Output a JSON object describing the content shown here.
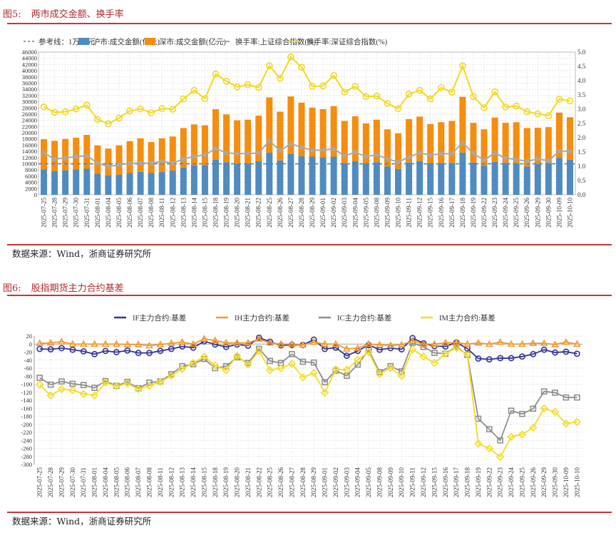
{
  "figure5": {
    "number": "图5:",
    "title": "两市成交金额、换手率",
    "source": "数据来源：Wind，浙商证券研究所"
  },
  "figure6": {
    "number": "图6:",
    "title": "股指期货主力合约基差",
    "source": "数据来源：Wind，浙商证券研究所"
  },
  "chart_data": [
    {
      "type": "bar",
      "stacked": true,
      "categories": [
        "2025-07-25",
        "2025-07-28",
        "2025-07-29",
        "2025-07-30",
        "2025-07-31",
        "2025-08-01",
        "2025-08-04",
        "2025-08-05",
        "2025-08-06",
        "2025-08-07",
        "2025-08-08",
        "2025-08-11",
        "2025-08-12",
        "2025-08-13",
        "2025-08-14",
        "2025-08-15",
        "2025-08-18",
        "2025-08-19",
        "2025-08-20",
        "2025-08-21",
        "2025-08-22",
        "2025-08-25",
        "2025-08-26",
        "2025-08-27",
        "2025-08-28",
        "2025-08-29",
        "2025-09-01",
        "2025-09-02",
        "2025-09-03",
        "2025-09-04",
        "2025-09-05",
        "2025-09-08",
        "2025-09-09",
        "2025-09-10",
        "2025-09-11",
        "2025-09-12",
        "2025-09-15",
        "2025-09-16",
        "2025-09-17",
        "2025-09-18",
        "2025-09-19",
        "2025-09-22",
        "2025-09-23",
        "2025-09-24",
        "2025-09-25",
        "2025-09-26",
        "2025-09-29",
        "2025-09-30",
        "2025-10-09",
        "2025-10-10"
      ],
      "reference_line": {
        "name": "参考线：1万亿元",
        "value": 10000,
        "color": "#4a86c0",
        "style": "dashed"
      },
      "series": [
        {
          "name": "沪市:成交金额(亿元)",
          "kind": "bar",
          "axis": "left",
          "color": "#4f8bc1",
          "values": [
            8200,
            7600,
            7900,
            8200,
            8400,
            6800,
            6300,
            6500,
            7000,
            7400,
            7100,
            7400,
            7800,
            8800,
            9500,
            9600,
            11300,
            10500,
            10000,
            10000,
            10800,
            13600,
            11100,
            13200,
            12500,
            12300,
            12100,
            12300,
            10200,
            10800,
            10100,
            10500,
            9100,
            8300,
            10400,
            10900,
            10200,
            10200,
            10300,
            13600,
            10400,
            9400,
            10600,
            10300,
            10100,
            9100,
            9900,
            10200,
            11900,
            11300
          ]
        },
        {
          "name": "深市:成交金额(亿元)",
          "kind": "bar",
          "axis": "left",
          "color": "#f58d0e",
          "values": [
            9700,
            9800,
            10100,
            10200,
            10900,
            9100,
            8600,
            9400,
            10300,
            10800,
            9900,
            10800,
            11000,
            12700,
            13200,
            12800,
            16300,
            15400,
            14000,
            14200,
            14700,
            17800,
            15700,
            18500,
            17200,
            15800,
            15500,
            16300,
            13600,
            14500,
            12900,
            13700,
            12000,
            11500,
            14000,
            14300,
            12600,
            13200,
            13500,
            18000,
            12800,
            11700,
            14300,
            12900,
            13300,
            12400,
            11700,
            11600,
            14600,
            13700
          ]
        },
        {
          "name": "换手率:上证综合指数(%)",
          "kind": "line",
          "axis": "right",
          "color": "#a9a9a9",
          "values": [
            1.47,
            1.25,
            1.29,
            1.34,
            1.37,
            1.11,
            0.99,
            1.05,
            1.1,
            1.11,
            1.11,
            1.17,
            1.11,
            1.26,
            1.34,
            1.4,
            1.62,
            1.47,
            1.44,
            1.45,
            1.46,
            1.89,
            1.54,
            1.79,
            1.66,
            1.56,
            1.57,
            1.61,
            1.36,
            1.49,
            1.34,
            1.4,
            1.26,
            1.15,
            1.32,
            1.47,
            1.39,
            1.44,
            1.44,
            1.82,
            1.45,
            1.21,
            1.47,
            1.28,
            1.24,
            1.17,
            1.26,
            1.19,
            1.53,
            1.53
          ]
        },
        {
          "name": "换手率:深证综合指数(%)",
          "kind": "line",
          "axis": "right",
          "color": "#f2d81e",
          "values": [
            3.08,
            2.89,
            2.91,
            3.01,
            3.14,
            2.64,
            2.49,
            2.69,
            2.94,
            3.01,
            2.88,
            3.02,
            3.0,
            3.36,
            3.66,
            3.37,
            4.23,
            3.98,
            3.78,
            3.86,
            3.76,
            4.52,
            4.08,
            4.83,
            4.47,
            3.8,
            3.82,
            4.18,
            3.6,
            3.8,
            3.44,
            3.46,
            3.2,
            3.02,
            3.53,
            3.66,
            3.36,
            3.75,
            3.6,
            4.52,
            3.44,
            3.05,
            3.61,
            3.08,
            3.11,
            2.91,
            2.84,
            2.77,
            3.35,
            3.29
          ]
        }
      ],
      "y_left": {
        "min": 0,
        "max": 46000,
        "step": 2000
      },
      "y_right": {
        "min": 0,
        "max": 5.0,
        "step": 0.5
      },
      "grid": true,
      "legend": "top"
    },
    {
      "type": "line",
      "categories": [
        "2025-07-25",
        "2025-07-28",
        "2025-07-29",
        "2025-07-30",
        "2025-07-31",
        "2025-08-01",
        "2025-08-04",
        "2025-08-05",
        "2025-08-06",
        "2025-08-07",
        "2025-08-08",
        "2025-08-11",
        "2025-08-12",
        "2025-08-13",
        "2025-08-14",
        "2025-08-15",
        "2025-08-18",
        "2025-08-19",
        "2025-08-20",
        "2025-08-21",
        "2025-08-22",
        "2025-08-25",
        "2025-08-26",
        "2025-08-27",
        "2025-08-28",
        "2025-08-29",
        "2025-09-01",
        "2025-09-02",
        "2025-09-03",
        "2025-09-04",
        "2025-09-05",
        "2025-09-08",
        "2025-09-09",
        "2025-09-10",
        "2025-09-11",
        "2025-09-12",
        "2025-09-15",
        "2025-09-16",
        "2025-09-17",
        "2025-09-18",
        "2025-09-19",
        "2025-09-22",
        "2025-09-23",
        "2025-09-24",
        "2025-09-25",
        "2025-09-26",
        "2025-09-29",
        "2025-09-30",
        "2025-10-09",
        "2025-10-10"
      ],
      "series": [
        {
          "name": "IF主力合约:基差",
          "color": "#34349c",
          "marker": "circle",
          "values": [
            -12,
            -13,
            -10,
            -14,
            -18,
            -25,
            -17,
            -20,
            -16,
            -22,
            -22,
            -17,
            -12,
            -6,
            -9,
            7,
            -1,
            -7,
            -1,
            -4,
            16,
            6,
            -3,
            -2,
            -2,
            11,
            -12,
            -9,
            -29,
            -17,
            -2,
            -14,
            -10,
            -13,
            15,
            2,
            -5,
            -6,
            4,
            -11,
            -36,
            -38,
            -35,
            -35,
            -31,
            -25,
            -14,
            -21,
            -19,
            -24
          ]
        },
        {
          "name": "IH主力合约:基差",
          "color": "#f39a2c",
          "marker": "triangle",
          "values": [
            2,
            3,
            6,
            0,
            0,
            0,
            0,
            0,
            -1,
            -1,
            -4,
            -1,
            2,
            5,
            0,
            13,
            9,
            3,
            3,
            3,
            13,
            3,
            0,
            0,
            -2,
            5,
            0,
            0,
            -12,
            -10,
            0,
            -2,
            -3,
            -2,
            8,
            0,
            0,
            3,
            4,
            0,
            3,
            0,
            5,
            0,
            0,
            2,
            2,
            -1,
            5,
            0
          ]
        },
        {
          "name": "IC主力合约:基差",
          "color": "#8f8f8f",
          "marker": "square",
          "values": [
            -84,
            -101,
            -93,
            -99,
            -102,
            -109,
            -92,
            -104,
            -94,
            -110,
            -96,
            -93,
            -75,
            -55,
            -50,
            -37,
            -60,
            -55,
            -33,
            -47,
            -12,
            -42,
            -47,
            -25,
            -44,
            -46,
            -95,
            -66,
            -79,
            -51,
            -15,
            -70,
            -55,
            -68,
            3,
            -7,
            -22,
            -24,
            -6,
            -27,
            -186,
            -212,
            -240,
            -166,
            -174,
            -161,
            -118,
            -121,
            -133,
            -133
          ]
        },
        {
          "name": "IM主力合约:基差",
          "color": "#f4dc24",
          "marker": "diamond",
          "values": [
            -101,
            -128,
            -112,
            -115,
            -124,
            -128,
            -96,
            -105,
            -98,
            -112,
            -104,
            -94,
            -79,
            -62,
            -47,
            -31,
            -53,
            -65,
            -29,
            -51,
            -17,
            -65,
            -60,
            -49,
            -83,
            -72,
            -121,
            -63,
            -64,
            -39,
            -20,
            -75,
            -60,
            -79,
            -13,
            -31,
            -47,
            -24,
            -9,
            -26,
            -248,
            -260,
            -281,
            -231,
            -225,
            -208,
            -160,
            -169,
            -198,
            -194
          ]
        }
      ],
      "y": {
        "min": -300,
        "max": 20,
        "step": 20
      },
      "grid": true,
      "legend": "top"
    }
  ]
}
